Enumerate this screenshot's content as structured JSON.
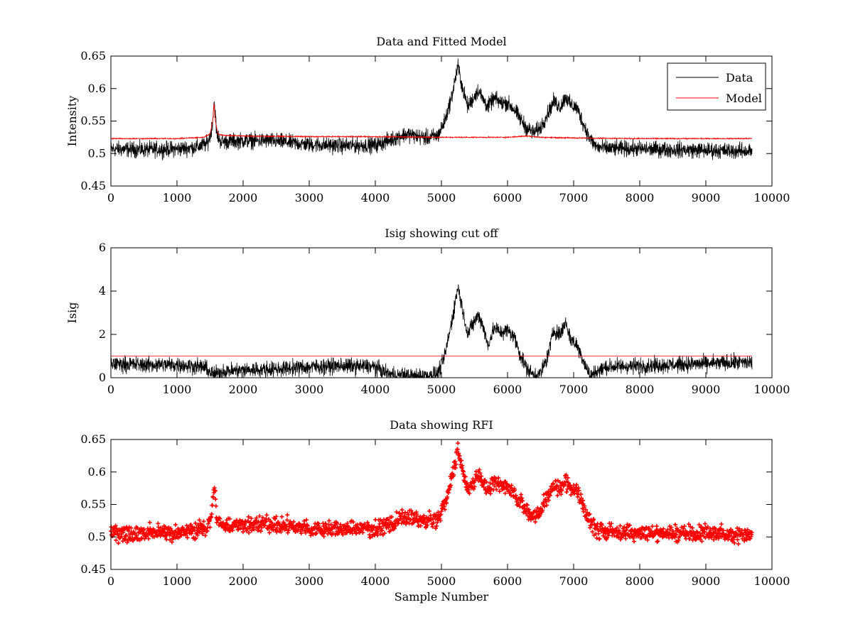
{
  "chart_data": [
    {
      "type": "line",
      "title": "Data and Fitted Model",
      "xlabel": "",
      "ylabel": "Intensity",
      "xlim": [
        0,
        10000
      ],
      "ylim": [
        0.45,
        0.65
      ],
      "xticks": [
        0,
        1000,
        2000,
        3000,
        4000,
        5000,
        6000,
        7000,
        8000,
        9000,
        10000
      ],
      "yticks": [
        0.45,
        0.5,
        0.55,
        0.6,
        0.65
      ],
      "legend_position": "top-right",
      "series": [
        {
          "name": "Data",
          "color": "#000000",
          "noise": 0.006,
          "x": [
            0,
            500,
            1000,
            1300,
            1450,
            1500,
            1540,
            1560,
            1580,
            1600,
            1650,
            1700,
            2000,
            2400,
            2600,
            3000,
            3500,
            4000,
            4200,
            4400,
            4500,
            4650,
            4800,
            4950,
            5050,
            5150,
            5250,
            5320,
            5400,
            5480,
            5560,
            5620,
            5700,
            5800,
            5900,
            6000,
            6100,
            6200,
            6300,
            6400,
            6500,
            6600,
            6700,
            6800,
            6880,
            6950,
            7050,
            7150,
            7250,
            7350,
            7500,
            8000,
            8500,
            9000,
            9500,
            9700
          ],
          "y": [
            0.507,
            0.506,
            0.507,
            0.51,
            0.515,
            0.525,
            0.55,
            0.58,
            0.56,
            0.53,
            0.52,
            0.518,
            0.52,
            0.52,
            0.518,
            0.514,
            0.512,
            0.513,
            0.52,
            0.528,
            0.53,
            0.526,
            0.524,
            0.528,
            0.55,
            0.585,
            0.635,
            0.6,
            0.572,
            0.585,
            0.598,
            0.585,
            0.572,
            0.585,
            0.578,
            0.578,
            0.568,
            0.552,
            0.538,
            0.532,
            0.54,
            0.56,
            0.58,
            0.572,
            0.588,
            0.575,
            0.57,
            0.545,
            0.522,
            0.51,
            0.508,
            0.507,
            0.506,
            0.505,
            0.504,
            0.504
          ]
        },
        {
          "name": "Model",
          "color": "#ff0000",
          "noise": 0.0004,
          "x": [
            0,
            1000,
            1400,
            1500,
            1540,
            1560,
            1580,
            1620,
            1700,
            2000,
            3000,
            4000,
            5000,
            6000,
            6300,
            6500,
            7000,
            8000,
            9000,
            9700
          ],
          "y": [
            0.523,
            0.523,
            0.525,
            0.53,
            0.55,
            0.577,
            0.55,
            0.53,
            0.528,
            0.527,
            0.526,
            0.526,
            0.525,
            0.525,
            0.527,
            0.525,
            0.524,
            0.523,
            0.523,
            0.523
          ]
        }
      ]
    },
    {
      "type": "line",
      "title": "Isig showing cut off",
      "xlabel": "",
      "ylabel": "Isig",
      "xlim": [
        0,
        10000
      ],
      "ylim": [
        0,
        6
      ],
      "xticks": [
        0,
        1000,
        2000,
        3000,
        4000,
        5000,
        6000,
        7000,
        8000,
        9000,
        10000
      ],
      "yticks": [
        0,
        2,
        4,
        6
      ],
      "series": [
        {
          "color": "#000000",
          "noise": 0.18,
          "x": [
            0,
            500,
            1000,
            1400,
            1550,
            1700,
            2000,
            2500,
            3000,
            3500,
            4000,
            4200,
            4400,
            4600,
            4800,
            4950,
            5050,
            5150,
            5250,
            5330,
            5400,
            5480,
            5560,
            5630,
            5700,
            5800,
            5900,
            6000,
            6100,
            6200,
            6300,
            6400,
            6500,
            6600,
            6700,
            6800,
            6880,
            6950,
            7050,
            7150,
            7250,
            7350,
            7500,
            8000,
            8500,
            9000,
            9500,
            9700
          ],
          "y": [
            0.65,
            0.6,
            0.6,
            0.5,
            0.15,
            0.3,
            0.35,
            0.4,
            0.5,
            0.55,
            0.5,
            0.15,
            0.1,
            0.05,
            0.1,
            0.2,
            1.0,
            2.5,
            4.2,
            3.0,
            2.0,
            2.5,
            2.9,
            2.4,
            1.5,
            2.3,
            2.1,
            2.2,
            1.9,
            1.0,
            0.4,
            0.1,
            0.2,
            0.9,
            2.2,
            2.0,
            2.6,
            1.8,
            1.5,
            0.8,
            0.05,
            0.3,
            0.5,
            0.55,
            0.6,
            0.65,
            0.7,
            0.7
          ]
        },
        {
          "color": "#ff0000",
          "noise": 0,
          "x": [
            0,
            9700
          ],
          "y": [
            1,
            1
          ]
        }
      ]
    },
    {
      "type": "scatter",
      "title": "Data showing RFI",
      "xlabel": "Sample Number",
      "ylabel": "",
      "xlim": [
        0,
        10000
      ],
      "ylim": [
        0.45,
        0.65
      ],
      "xticks": [
        0,
        1000,
        2000,
        3000,
        4000,
        5000,
        6000,
        7000,
        8000,
        9000,
        10000
      ],
      "yticks": [
        0.45,
        0.5,
        0.55,
        0.6,
        0.65
      ],
      "series": [
        {
          "color": "#ff0000",
          "noise": 0.006,
          "marker": "plus",
          "x": [
            0,
            500,
            1000,
            1300,
            1450,
            1500,
            1540,
            1560,
            1580,
            1600,
            1650,
            1700,
            2000,
            2400,
            2600,
            3000,
            3500,
            4000,
            4200,
            4400,
            4500,
            4650,
            4800,
            4950,
            5050,
            5150,
            5250,
            5320,
            5400,
            5480,
            5560,
            5620,
            5700,
            5800,
            5900,
            6000,
            6100,
            6200,
            6300,
            6400,
            6500,
            6600,
            6700,
            6800,
            6880,
            6950,
            7050,
            7150,
            7250,
            7350,
            7500,
            8000,
            8500,
            9000,
            9500,
            9700
          ],
          "y": [
            0.507,
            0.506,
            0.507,
            0.51,
            0.515,
            0.525,
            0.55,
            0.58,
            0.56,
            0.53,
            0.52,
            0.518,
            0.52,
            0.52,
            0.518,
            0.514,
            0.512,
            0.513,
            0.52,
            0.528,
            0.53,
            0.526,
            0.524,
            0.528,
            0.55,
            0.585,
            0.635,
            0.6,
            0.572,
            0.585,
            0.598,
            0.585,
            0.572,
            0.585,
            0.578,
            0.578,
            0.568,
            0.552,
            0.538,
            0.532,
            0.54,
            0.56,
            0.58,
            0.572,
            0.588,
            0.575,
            0.57,
            0.545,
            0.522,
            0.51,
            0.508,
            0.507,
            0.506,
            0.505,
            0.504,
            0.504
          ]
        }
      ]
    }
  ]
}
